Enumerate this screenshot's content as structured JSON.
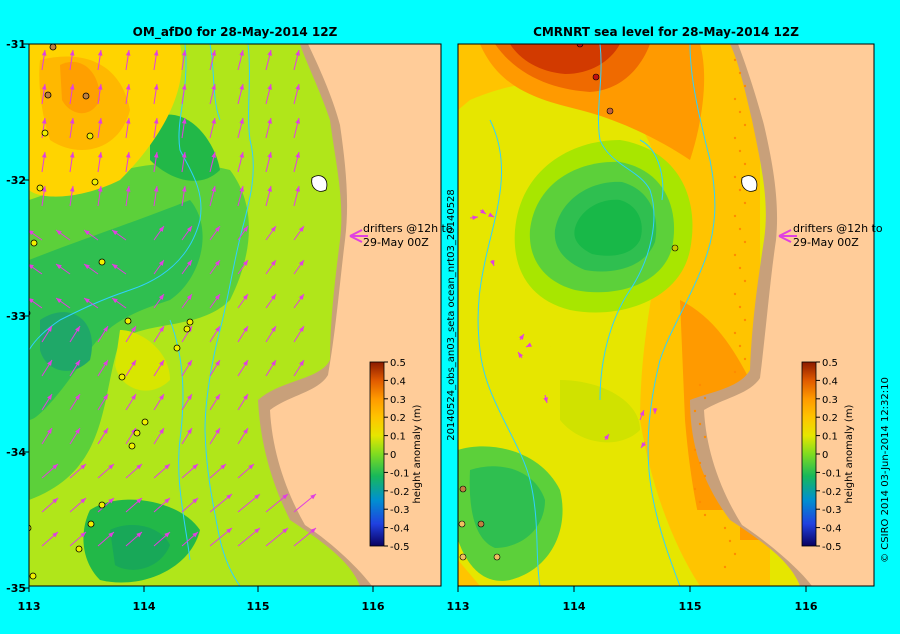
{
  "panels": [
    {
      "title": "OM_afD0 for 28-May-2014 12Z",
      "drifter_note": [
        "drifters @12h to",
        "29-May 00Z"
      ],
      "left_label": null
    },
    {
      "title": "CMRNRT sea level  for 28-May-2014 12Z",
      "drifter_note": [
        "drifters @12h to",
        "29-May 00Z"
      ],
      "left_label": "20140524_obs_an03_seta  ocean_nrt03_20140528"
    }
  ],
  "axes": {
    "lon_ticks": [
      "113",
      "114",
      "115",
      "116"
    ],
    "lat_ticks": [
      "-31",
      "-32",
      "-33",
      "-34",
      "-35"
    ]
  },
  "colorbar": {
    "label": "height anomaly (m)",
    "ticks": [
      "0.5",
      "0.4",
      "0.3",
      "0.2",
      "0.1",
      "0",
      "-0.1",
      "-0.2",
      "-0.3",
      "-0.4",
      "-0.5"
    ],
    "colors": [
      "#8b1a00",
      "#d23a00",
      "#ef6a00",
      "#ff9a00",
      "#ffc400",
      "#e6e600",
      "#a8e600",
      "#60d23c",
      "#18b85a",
      "#00a0a0",
      "#0070d0",
      "#2040e0",
      "#2010a0",
      "#0a0060"
    ]
  },
  "credit": "© CSIRO 2014   03-Jun-2014 12:32:10",
  "colors": {
    "background": "#00ffff",
    "land": "#ffcc99",
    "shelf": "#c8a07a",
    "arrow": "#e040e0",
    "isobath": "#30d0ff"
  }
}
